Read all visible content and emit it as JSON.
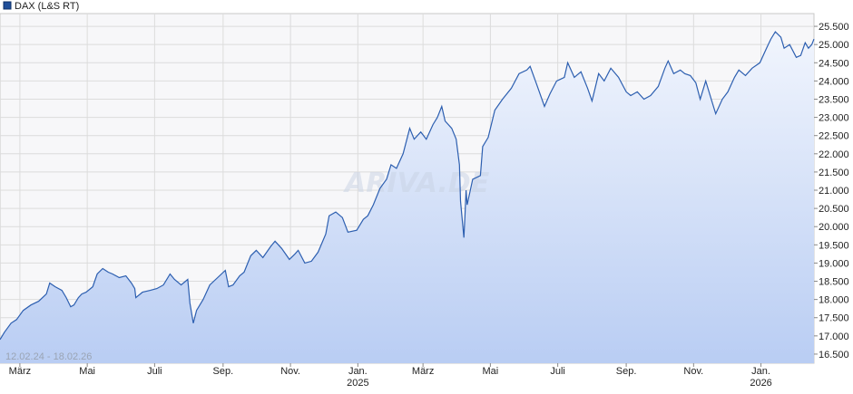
{
  "legend": {
    "label": "DAX (L&S RT)",
    "color": "#1f4e99"
  },
  "range_label": "12.02.24 - 18.02.26",
  "watermark": "ARIVA.DE",
  "colors": {
    "line": "#2d5fb0",
    "fill_top": "#f1f5fd",
    "fill_bottom": "#b9cdf3",
    "grid": "#dcdcdc",
    "plot_bg": "#f7f7f9"
  },
  "chart_data": {
    "type": "area",
    "title": "",
    "xlabel": "",
    "ylabel": "",
    "ylim": [
      16250,
      25850
    ],
    "y_ticks": [
      16500,
      17000,
      17500,
      18000,
      18500,
      19000,
      19500,
      20000,
      20500,
      21000,
      21500,
      22000,
      22500,
      23000,
      23500,
      24000,
      24500,
      25000,
      25500
    ],
    "y_tick_labels": [
      "16.500",
      "17.000",
      "17.500",
      "18.000",
      "18.500",
      "19.000",
      "19.500",
      "20.000",
      "20.500",
      "21.000",
      "21.500",
      "22.000",
      "22.500",
      "23.000",
      "23.500",
      "24.000",
      "24.500",
      "25.000",
      "25.500"
    ],
    "x_range": [
      "2024-02-12",
      "2026-02-18"
    ],
    "x_ticks": [
      {
        "date": "2024-03-01",
        "label": "März",
        "year": ""
      },
      {
        "date": "2024-05-01",
        "label": "Mai",
        "year": ""
      },
      {
        "date": "2024-07-01",
        "label": "Juli",
        "year": ""
      },
      {
        "date": "2024-09-01",
        "label": "Sep.",
        "year": ""
      },
      {
        "date": "2024-11-01",
        "label": "Nov.",
        "year": ""
      },
      {
        "date": "2025-01-01",
        "label": "Jan.",
        "year": "2025"
      },
      {
        "date": "2025-03-01",
        "label": "März",
        "year": ""
      },
      {
        "date": "2025-05-01",
        "label": "Mai",
        "year": ""
      },
      {
        "date": "2025-07-01",
        "label": "Juli",
        "year": ""
      },
      {
        "date": "2025-09-01",
        "label": "Sep.",
        "year": ""
      },
      {
        "date": "2025-11-01",
        "label": "Nov.",
        "year": ""
      },
      {
        "date": "2026-01-01",
        "label": "Jan.",
        "year": "2026"
      }
    ],
    "grid": true,
    "series": [
      {
        "name": "DAX (L&S RT)",
        "points": [
          [
            "2024-02-12",
            16900
          ],
          [
            "2024-02-16",
            17100
          ],
          [
            "2024-02-22",
            17350
          ],
          [
            "2024-02-27",
            17450
          ],
          [
            "2024-03-04",
            17700
          ],
          [
            "2024-03-11",
            17850
          ],
          [
            "2024-03-18",
            17950
          ],
          [
            "2024-03-25",
            18150
          ],
          [
            "2024-03-28",
            18450
          ],
          [
            "2024-04-02",
            18350
          ],
          [
            "2024-04-08",
            18250
          ],
          [
            "2024-04-12",
            18050
          ],
          [
            "2024-04-16",
            17800
          ],
          [
            "2024-04-19",
            17850
          ],
          [
            "2024-04-23",
            18050
          ],
          [
            "2024-04-26",
            18150
          ],
          [
            "2024-04-30",
            18200
          ],
          [
            "2024-05-06",
            18350
          ],
          [
            "2024-05-10",
            18700
          ],
          [
            "2024-05-15",
            18850
          ],
          [
            "2024-05-20",
            18750
          ],
          [
            "2024-05-24",
            18700
          ],
          [
            "2024-05-30",
            18600
          ],
          [
            "2024-06-05",
            18650
          ],
          [
            "2024-06-10",
            18450
          ],
          [
            "2024-06-13",
            18300
          ],
          [
            "2024-06-14",
            18050
          ],
          [
            "2024-06-20",
            18200
          ],
          [
            "2024-06-27",
            18250
          ],
          [
            "2024-07-03",
            18300
          ],
          [
            "2024-07-09",
            18400
          ],
          [
            "2024-07-15",
            18700
          ],
          [
            "2024-07-19",
            18550
          ],
          [
            "2024-07-25",
            18400
          ],
          [
            "2024-07-31",
            18550
          ],
          [
            "2024-08-02",
            17900
          ],
          [
            "2024-08-05",
            17350
          ],
          [
            "2024-08-08",
            17700
          ],
          [
            "2024-08-14",
            18000
          ],
          [
            "2024-08-20",
            18400
          ],
          [
            "2024-08-27",
            18600
          ],
          [
            "2024-09-03",
            18800
          ],
          [
            "2024-09-06",
            18350
          ],
          [
            "2024-09-10",
            18400
          ],
          [
            "2024-09-16",
            18650
          ],
          [
            "2024-09-20",
            18750
          ],
          [
            "2024-09-26",
            19200
          ],
          [
            "2024-10-01",
            19350
          ],
          [
            "2024-10-07",
            19150
          ],
          [
            "2024-10-14",
            19450
          ],
          [
            "2024-10-18",
            19600
          ],
          [
            "2024-10-24",
            19400
          ],
          [
            "2024-10-31",
            19100
          ],
          [
            "2024-11-05",
            19250
          ],
          [
            "2024-11-08",
            19350
          ],
          [
            "2024-11-14",
            19000
          ],
          [
            "2024-11-20",
            19050
          ],
          [
            "2024-11-26",
            19300
          ],
          [
            "2024-12-03",
            19800
          ],
          [
            "2024-12-06",
            20300
          ],
          [
            "2024-12-12",
            20400
          ],
          [
            "2024-12-18",
            20250
          ],
          [
            "2024-12-23",
            19850
          ],
          [
            "2024-12-31",
            19900
          ],
          [
            "2025-01-06",
            20200
          ],
          [
            "2025-01-10",
            20300
          ],
          [
            "2025-01-15",
            20600
          ],
          [
            "2025-01-21",
            21050
          ],
          [
            "2025-01-27",
            21300
          ],
          [
            "2025-01-31",
            21700
          ],
          [
            "2025-02-05",
            21600
          ],
          [
            "2025-02-11",
            22000
          ],
          [
            "2025-02-17",
            22700
          ],
          [
            "2025-02-21",
            22400
          ],
          [
            "2025-02-27",
            22600
          ],
          [
            "2025-03-04",
            22400
          ],
          [
            "2025-03-10",
            22800
          ],
          [
            "2025-03-14",
            23000
          ],
          [
            "2025-03-18",
            23300
          ],
          [
            "2025-03-21",
            22900
          ],
          [
            "2025-03-27",
            22700
          ],
          [
            "2025-03-31",
            22400
          ],
          [
            "2025-04-03",
            21700
          ],
          [
            "2025-04-04",
            20700
          ],
          [
            "2025-04-07",
            19700
          ],
          [
            "2025-04-08",
            20300
          ],
          [
            "2025-04-09",
            21000
          ],
          [
            "2025-04-10",
            20600
          ],
          [
            "2025-04-15",
            21300
          ],
          [
            "2025-04-22",
            21400
          ],
          [
            "2025-04-24",
            22200
          ],
          [
            "2025-04-29",
            22450
          ],
          [
            "2025-05-05",
            23200
          ],
          [
            "2025-05-12",
            23500
          ],
          [
            "2025-05-20",
            23800
          ],
          [
            "2025-05-27",
            24200
          ],
          [
            "2025-06-03",
            24300
          ],
          [
            "2025-06-06",
            24400
          ],
          [
            "2025-06-12",
            23900
          ],
          [
            "2025-06-19",
            23300
          ],
          [
            "2025-06-24",
            23650
          ],
          [
            "2025-06-30",
            24000
          ],
          [
            "2025-07-07",
            24100
          ],
          [
            "2025-07-10",
            24500
          ],
          [
            "2025-07-16",
            24100
          ],
          [
            "2025-07-22",
            24250
          ],
          [
            "2025-07-28",
            23800
          ],
          [
            "2025-08-01",
            23450
          ],
          [
            "2025-08-07",
            24200
          ],
          [
            "2025-08-12",
            24000
          ],
          [
            "2025-08-18",
            24350
          ],
          [
            "2025-08-25",
            24100
          ],
          [
            "2025-09-01",
            23700
          ],
          [
            "2025-09-05",
            23600
          ],
          [
            "2025-09-11",
            23700
          ],
          [
            "2025-09-17",
            23500
          ],
          [
            "2025-09-23",
            23600
          ],
          [
            "2025-09-30",
            23850
          ],
          [
            "2025-10-06",
            24350
          ],
          [
            "2025-10-09",
            24550
          ],
          [
            "2025-10-14",
            24200
          ],
          [
            "2025-10-20",
            24300
          ],
          [
            "2025-10-24",
            24200
          ],
          [
            "2025-10-29",
            24150
          ],
          [
            "2025-11-03",
            23950
          ],
          [
            "2025-11-07",
            23500
          ],
          [
            "2025-11-12",
            24000
          ],
          [
            "2025-11-18",
            23400
          ],
          [
            "2025-11-21",
            23100
          ],
          [
            "2025-11-27",
            23500
          ],
          [
            "2025-12-02",
            23700
          ],
          [
            "2025-12-08",
            24100
          ],
          [
            "2025-12-12",
            24300
          ],
          [
            "2025-12-18",
            24150
          ],
          [
            "2025-12-24",
            24350
          ],
          [
            "2025-12-31",
            24500
          ],
          [
            "2026-01-06",
            24900
          ],
          [
            "2026-01-10",
            25150
          ],
          [
            "2026-01-14",
            25350
          ],
          [
            "2026-01-19",
            25200
          ],
          [
            "2026-01-22",
            24900
          ],
          [
            "2026-01-27",
            25000
          ],
          [
            "2026-02-02",
            24650
          ],
          [
            "2026-02-06",
            24700
          ],
          [
            "2026-02-10",
            25050
          ],
          [
            "2026-02-13",
            24900
          ],
          [
            "2026-02-16",
            25000
          ],
          [
            "2026-02-18",
            25150
          ]
        ]
      }
    ]
  }
}
